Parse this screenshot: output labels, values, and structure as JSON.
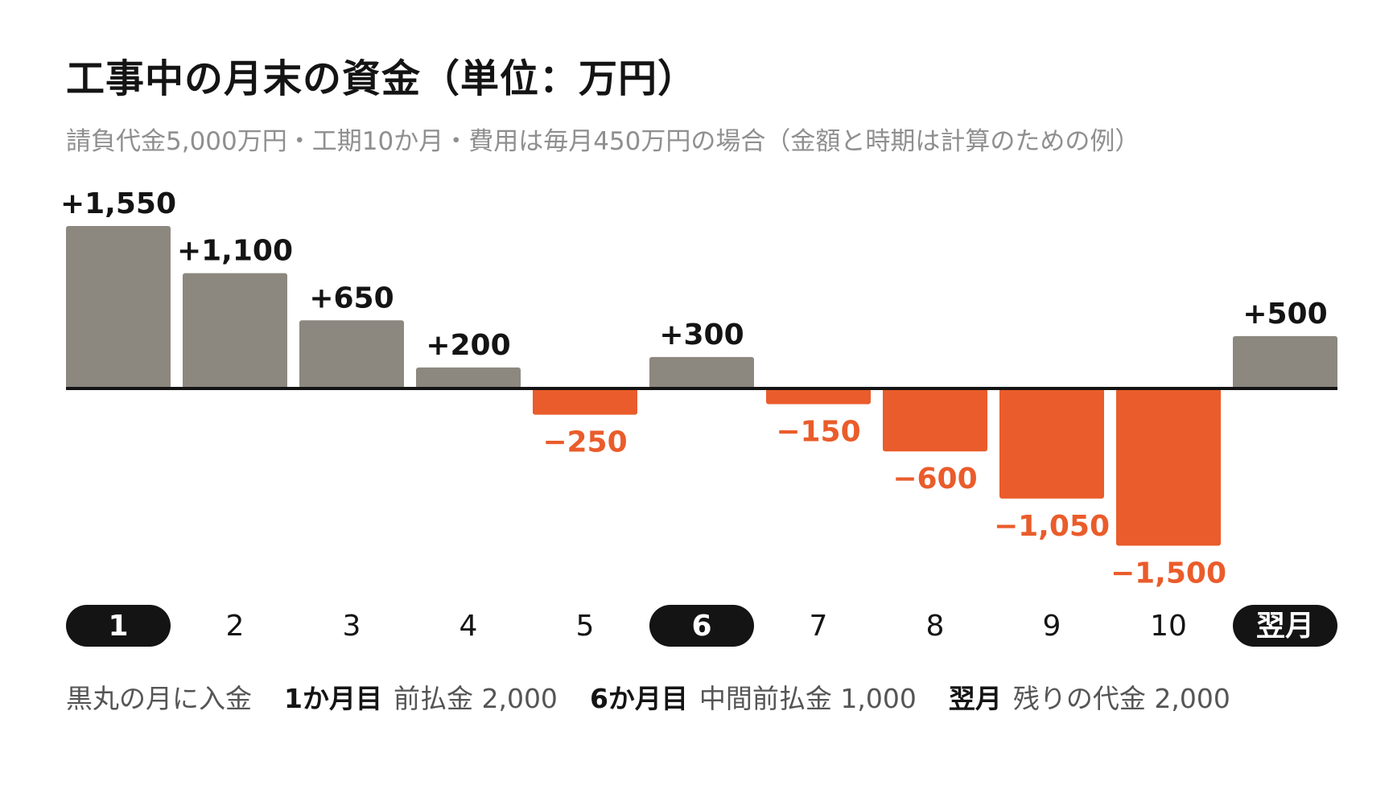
{
  "chart_data": {
    "type": "bar",
    "title": "工事中の月末の資金（単位：万円）",
    "subtitle": "請負代金5,000万円・工期10か月・費用は毎月450万円の場合（金額と時期は計算のための例）",
    "categories": [
      "1",
      "2",
      "3",
      "4",
      "5",
      "6",
      "7",
      "8",
      "9",
      "10",
      "翌月"
    ],
    "values": [
      1550,
      1100,
      650,
      200,
      -250,
      300,
      -150,
      -600,
      -1050,
      -1500,
      500
    ],
    "value_labels": [
      "+1,550",
      "+1,100",
      "+650",
      "+200",
      "−250",
      "+300",
      "−150",
      "−600",
      "−1,050",
      "−1,500",
      "+500"
    ],
    "highlighted_categories": [
      "1",
      "6",
      "翌月"
    ],
    "ylim": [
      -1500,
      1550
    ],
    "grid": false,
    "colors": {
      "positive": "#8c8880",
      "negative": "#ea5c2b",
      "baseline": "#141414",
      "positive_label": "#141414",
      "negative_label": "#ea5c2b",
      "pill": "#141414",
      "pill_text": "#ffffff"
    }
  },
  "legend": {
    "intro": "黒丸の月に入金",
    "items": [
      {
        "key": "1か月目",
        "desc": "前払金 2,000"
      },
      {
        "key": "6か月目",
        "desc": "中間前払金 1,000"
      },
      {
        "key": "翌月",
        "desc": "残りの代金 2,000"
      }
    ]
  }
}
